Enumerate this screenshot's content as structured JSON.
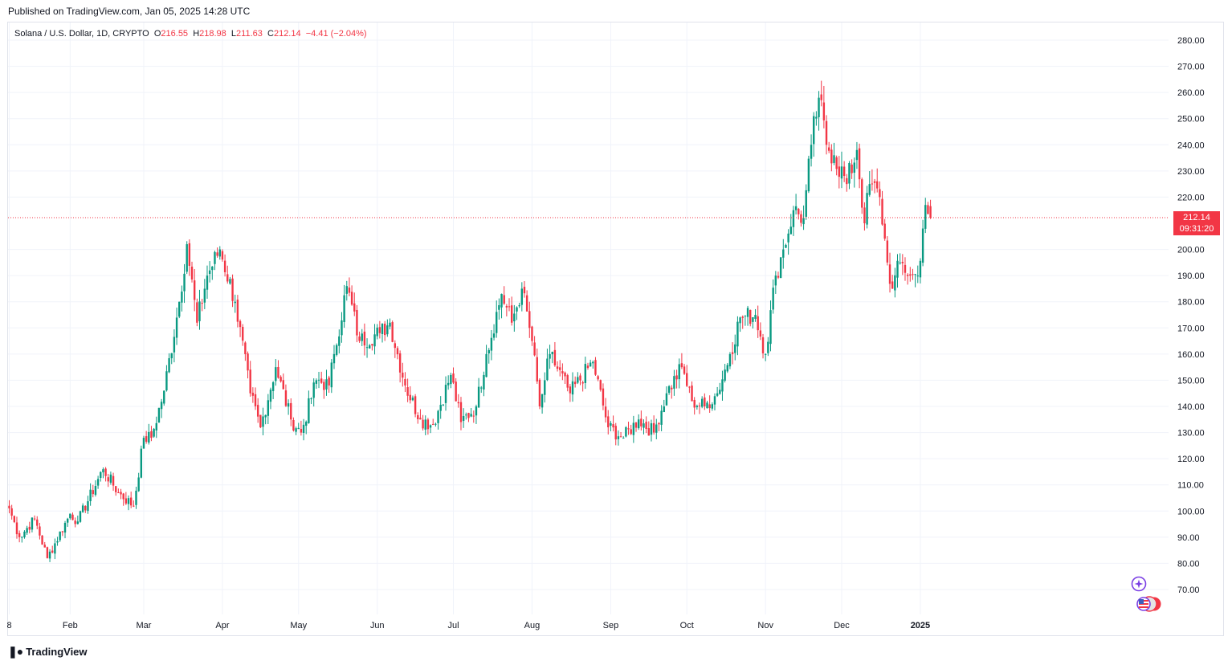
{
  "header": {
    "published": "Published on TradingView.com, Jan 05, 2025 14:28 UTC"
  },
  "legend": {
    "symbol": "Solana / U.S. Dollar, 1D, CRYPTO",
    "o_label": "O",
    "o_value": "216.55",
    "h_label": "H",
    "h_value": "218.98",
    "l_label": "L",
    "l_value": "211.63",
    "c_label": "C",
    "c_value": "212.14",
    "change": "−4.41 (−2.04%)"
  },
  "price_tag": {
    "price": "212.14",
    "countdown": "09:31:20"
  },
  "footer": {
    "brand": "TradingView"
  },
  "icons": {
    "star": "sparkle-icon",
    "flags": "us-flag-icon"
  },
  "colors": {
    "up": "#089981",
    "down": "#f23645",
    "last_price_line": "#f23645",
    "grid": "#f0f3fa"
  },
  "chart_data": {
    "type": "candlestick",
    "title": "Solana / U.S. Dollar, 1D, CRYPTO",
    "ylim": [
      62,
      286
    ],
    "y_ticks": [
      "280.00",
      "270.00",
      "260.00",
      "250.00",
      "240.00",
      "230.00",
      "220.00",
      "200.00",
      "190.00",
      "180.00",
      "170.00",
      "160.00",
      "150.00",
      "140.00",
      "130.00",
      "120.00",
      "110.00",
      "100.00",
      "90.00",
      "80.00",
      "70.00"
    ],
    "x_ticks": [
      "8",
      "Feb",
      "Mar",
      "Apr",
      "May",
      "Jun",
      "Jul",
      "Aug",
      "Sep",
      "Oct",
      "Nov",
      "Dec",
      "2025"
    ],
    "last_price": 212.14,
    "grid": true,
    "anchors": [
      {
        "date": "Jan 08",
        "close": 101
      },
      {
        "date": "Jan 12",
        "close": 90
      },
      {
        "date": "Jan 18",
        "close": 97
      },
      {
        "date": "Jan 23",
        "close": 82
      },
      {
        "date": "Feb 01",
        "close": 99
      },
      {
        "date": "Feb 04",
        "close": 96
      },
      {
        "date": "Feb 14",
        "close": 116
      },
      {
        "date": "Feb 20",
        "close": 107
      },
      {
        "date": "Feb 26",
        "close": 102
      },
      {
        "date": "Mar 01",
        "close": 128
      },
      {
        "date": "Mar 04",
        "close": 128
      },
      {
        "date": "Mar 09",
        "close": 146
      },
      {
        "date": "Mar 15",
        "close": 180
      },
      {
        "date": "Mar 18",
        "close": 202
      },
      {
        "date": "Mar 22",
        "close": 172
      },
      {
        "date": "Mar 26",
        "close": 190
      },
      {
        "date": "Mar 31",
        "close": 200
      },
      {
        "date": "Apr 06",
        "close": 180
      },
      {
        "date": "Apr 12",
        "close": 145
      },
      {
        "date": "Apr 16",
        "close": 132
      },
      {
        "date": "Apr 22",
        "close": 155
      },
      {
        "date": "Apr 28",
        "close": 135
      },
      {
        "date": "May 02",
        "close": 130
      },
      {
        "date": "May 08",
        "close": 150
      },
      {
        "date": "May 13",
        "close": 148
      },
      {
        "date": "May 15",
        "close": 160
      },
      {
        "date": "May 20",
        "close": 186
      },
      {
        "date": "May 25",
        "close": 165
      },
      {
        "date": "Jun 02",
        "close": 168
      },
      {
        "date": "Jun 06",
        "close": 172
      },
      {
        "date": "Jun 12",
        "close": 148
      },
      {
        "date": "Jun 18",
        "close": 135
      },
      {
        "date": "Jun 23",
        "close": 133
      },
      {
        "date": "Jun 30",
        "close": 152
      },
      {
        "date": "Jul 04",
        "close": 134
      },
      {
        "date": "Jul 10",
        "close": 140
      },
      {
        "date": "Jul 14",
        "close": 160
      },
      {
        "date": "Jul 20",
        "close": 183
      },
      {
        "date": "Jul 24",
        "close": 172
      },
      {
        "date": "Jul 28",
        "close": 185
      },
      {
        "date": "Aug 01",
        "close": 165
      },
      {
        "date": "Aug 04",
        "close": 140
      },
      {
        "date": "Aug 06",
        "close": 150
      },
      {
        "date": "Aug 08",
        "close": 160
      },
      {
        "date": "Aug 16",
        "close": 145
      },
      {
        "date": "Aug 25",
        "close": 157
      },
      {
        "date": "Aug 31",
        "close": 132
      },
      {
        "date": "Sep 06",
        "close": 128
      },
      {
        "date": "Sep 12",
        "close": 135
      },
      {
        "date": "Sep 18",
        "close": 130
      },
      {
        "date": "Sep 23",
        "close": 145
      },
      {
        "date": "Sep 29",
        "close": 155
      },
      {
        "date": "Oct 03",
        "close": 142
      },
      {
        "date": "Oct 08",
        "close": 140
      },
      {
        "date": "Oct 13",
        "close": 145
      },
      {
        "date": "Oct 18",
        "close": 160
      },
      {
        "date": "Oct 22",
        "close": 174
      },
      {
        "date": "Oct 28",
        "close": 175
      },
      {
        "date": "Nov 01",
        "close": 160
      },
      {
        "date": "Nov 05",
        "close": 190
      },
      {
        "date": "Nov 08",
        "close": 200
      },
      {
        "date": "Nov 12",
        "close": 215
      },
      {
        "date": "Nov 16",
        "close": 212
      },
      {
        "date": "Nov 19",
        "close": 240
      },
      {
        "date": "Nov 22",
        "close": 258
      },
      {
        "date": "Nov 25",
        "close": 240
      },
      {
        "date": "Nov 28",
        "close": 236
      },
      {
        "date": "Dec 03",
        "close": 225
      },
      {
        "date": "Dec 07",
        "close": 238
      },
      {
        "date": "Dec 10",
        "close": 210
      },
      {
        "date": "Dec 12",
        "close": 225
      },
      {
        "date": "Dec 16",
        "close": 220
      },
      {
        "date": "Dec 19",
        "close": 195
      },
      {
        "date": "Dec 21",
        "close": 185
      },
      {
        "date": "Dec 24",
        "close": 195
      },
      {
        "date": "Dec 28",
        "close": 190
      },
      {
        "date": "Dec 31",
        "close": 190
      },
      {
        "date": "Jan 02",
        "close": 208
      },
      {
        "date": "Jan 03",
        "close": 217
      },
      {
        "date": "Jan 05",
        "close": 212.14
      }
    ]
  }
}
